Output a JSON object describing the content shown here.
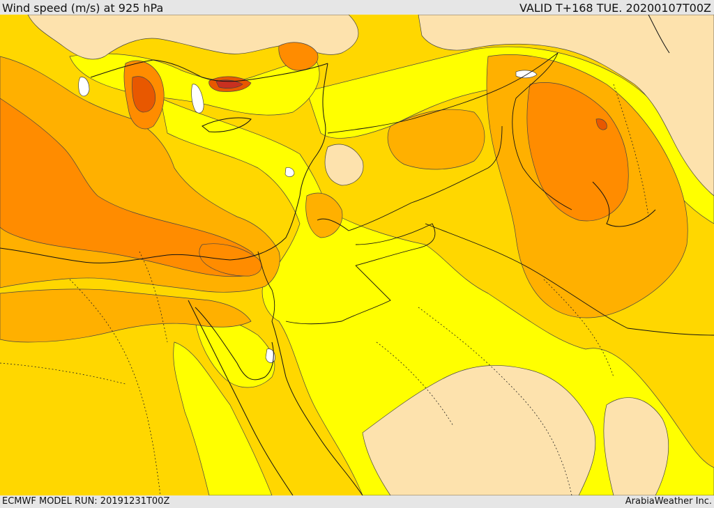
{
  "header": {
    "title": "Wind speed (m/s) at 925 hPa",
    "valid_time": "VALID T+168 TUE. 20200107T00Z"
  },
  "footer": {
    "model_run": "ECMWF MODEL RUN: 20191231T00Z",
    "credit": "ArabiaWeather Inc."
  },
  "map": {
    "palette": {
      "calm": "#ffffff",
      "light": "#fde2ad",
      "moderate": "#ffff00",
      "fresh": "#ffd700",
      "strong": "#ffb000",
      "very_strong": "#ff8c00",
      "gale": "#e85800",
      "storm": "#c83020"
    },
    "contour_color": "#333333",
    "border_color": "#111111"
  }
}
